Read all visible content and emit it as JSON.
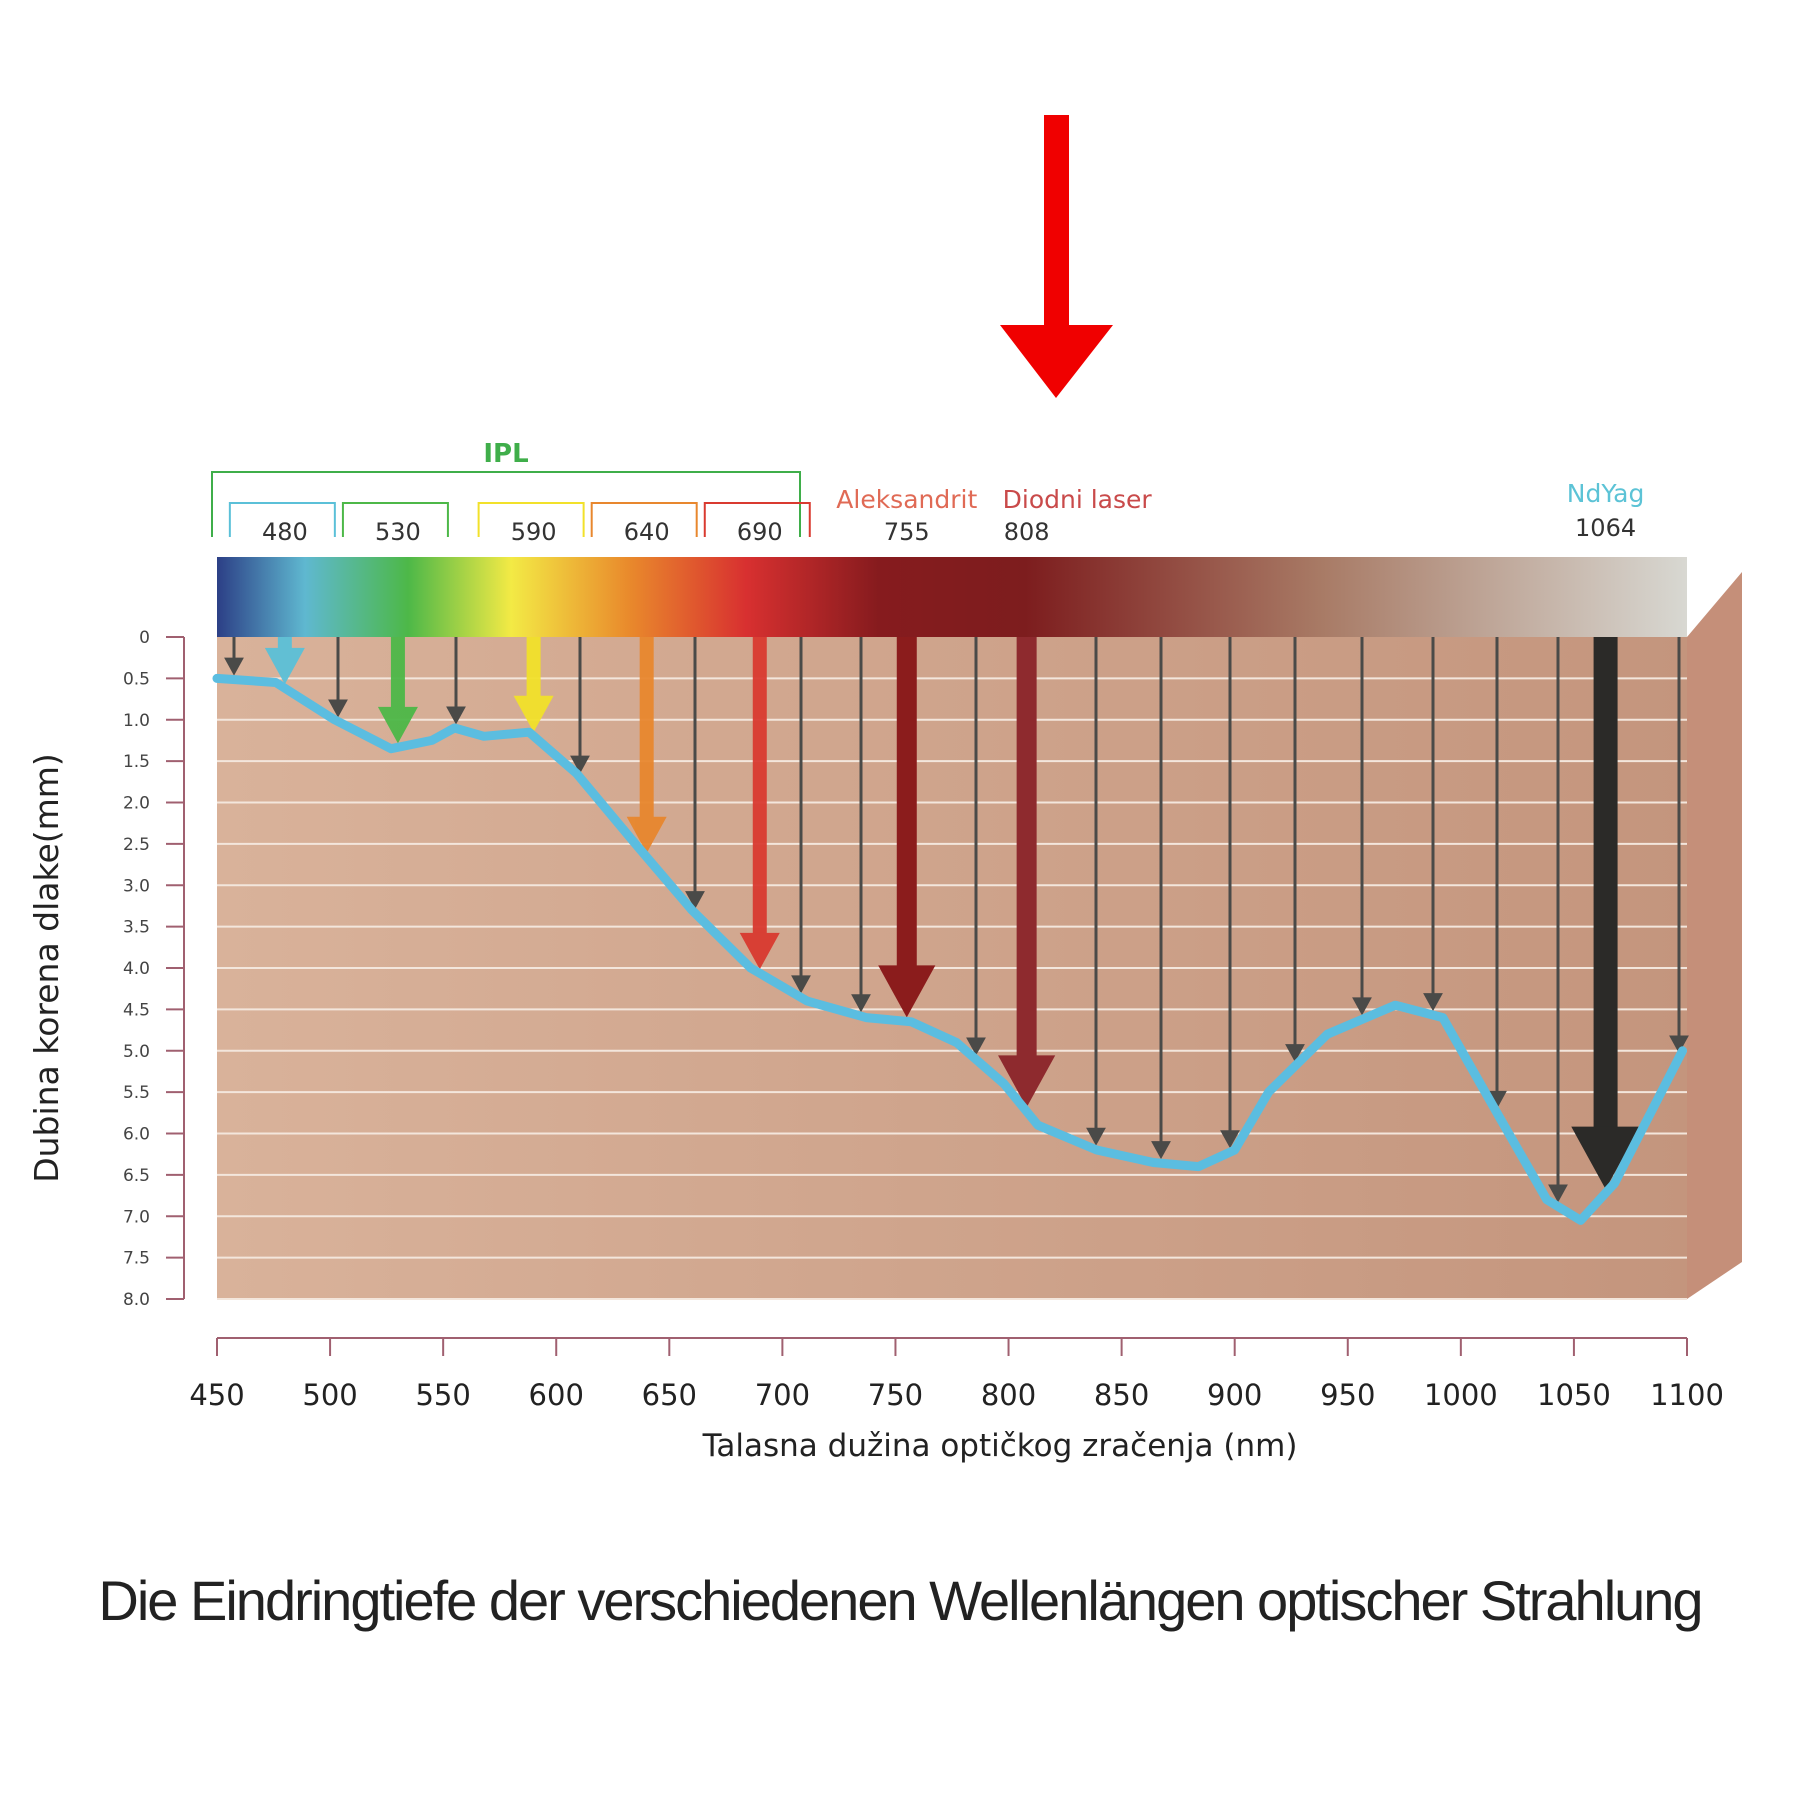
{
  "chart_data": {
    "type": "line",
    "title": "Die Eindringtiefe der verschiedenen Wellenlängen optischer Strahlung",
    "x_label": "Talasna dužina optičkog zračenja (nm)",
    "y_label": "Dubina korena dlake(mm)",
    "xlim": [
      450,
      1100
    ],
    "xticks": [
      450,
      500,
      550,
      600,
      650,
      700,
      750,
      800,
      850,
      900,
      950,
      1000,
      1050,
      1100
    ],
    "ylim": [
      8,
      0
    ],
    "yticks": [
      0,
      0.5,
      {
        "value": 1,
        "label": "1.0"
      },
      1.5,
      {
        "value": 2,
        "label": "2.0"
      },
      2.5,
      {
        "value": 3,
        "label": "3.0"
      },
      3.5,
      {
        "value": 4,
        "label": "4.0"
      },
      4.5,
      {
        "value": 5,
        "label": "5.0"
      },
      5.5,
      {
        "value": 6,
        "label": "6.0"
      },
      6.5,
      {
        "value": 7,
        "label": "7.0"
      },
      7.5,
      {
        "value": 8,
        "label": "8.0"
      }
    ],
    "grid": true,
    "x": [
      450,
      476,
      502,
      527,
      545,
      555,
      568,
      588,
      609,
      635,
      660,
      686,
      711,
      737,
      757,
      777,
      798,
      813,
      839,
      864,
      884,
      900,
      915,
      941,
      971,
      992,
      1017,
      1038,
      1053,
      1068,
      1098
    ],
    "series": [
      {
        "color": "#5bbde0",
        "values": [
          0.5,
          0.55,
          1.0,
          1.35,
          1.25,
          1.1,
          1.2,
          1.15,
          1.65,
          2.5,
          3.3,
          4.0,
          4.4,
          4.6,
          4.65,
          4.9,
          5.4,
          5.9,
          6.2,
          6.35,
          6.4,
          6.2,
          5.5,
          4.8,
          4.45,
          4.6,
          5.8,
          6.8,
          7.05,
          6.6,
          5.0
        ]
      }
    ],
    "group_label": "IPL",
    "group_color": "#3fae4a",
    "filters": [
      {
        "value": 480,
        "color": "#5bc0d8"
      },
      {
        "value": 530,
        "color": "#4db848"
      },
      {
        "value": 590,
        "color": "#f2e12a"
      },
      {
        "value": 640,
        "color": "#e8872e"
      },
      {
        "value": 690,
        "color": "#d93a30"
      }
    ],
    "lasers": [
      {
        "name": "Aleksandrit",
        "value": 755,
        "color": "#8b1c1c",
        "label_color": "#e06a55"
      },
      {
        "name": "Diodni laser",
        "value": 808,
        "color": "#8e2a2e",
        "label_color": "#c94a4a"
      },
      {
        "name": "NdYag",
        "value": 1064,
        "color": "#2b2a28",
        "label_color": "#5cc3d6"
      }
    ]
  }
}
